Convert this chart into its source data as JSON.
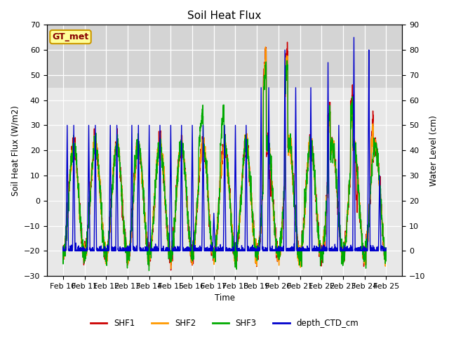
{
  "title": "Soil Heat Flux",
  "xlabel": "Time",
  "ylabel_left": "Soil Heat Flux (W/m2)",
  "ylabel_right": "Water Level (cm)",
  "ylim_left": [
    -30,
    70
  ],
  "ylim_right": [
    -10,
    90
  ],
  "yticks_left": [
    -30,
    -20,
    -10,
    0,
    10,
    20,
    30,
    40,
    50,
    60,
    70
  ],
  "yticks_right": [
    -10,
    0,
    10,
    20,
    30,
    40,
    50,
    60,
    70,
    80,
    90
  ],
  "xticklabels": [
    "Feb 10",
    "Feb 11",
    "Feb 12",
    "Feb 13",
    "Feb 14",
    "Feb 15",
    "Feb 16",
    "Feb 17",
    "Feb 18",
    "Feb 19",
    "Feb 20",
    "Feb 21",
    "Feb 22",
    "Feb 23",
    "Feb 24",
    "Feb 25"
  ],
  "color_SHF1": "#cc0000",
  "color_SHF2": "#ff9900",
  "color_SHF3": "#00aa00",
  "color_CTD": "#0000cc",
  "shaded_top_color": "#cccccc",
  "plot_bg": "#e8e8e8",
  "GT_met_text": "GT_met",
  "GT_met_facecolor": "#ffff99",
  "GT_met_edgecolor": "#cc9900",
  "GT_met_textcolor": "#880000",
  "linewidth": 1.0
}
